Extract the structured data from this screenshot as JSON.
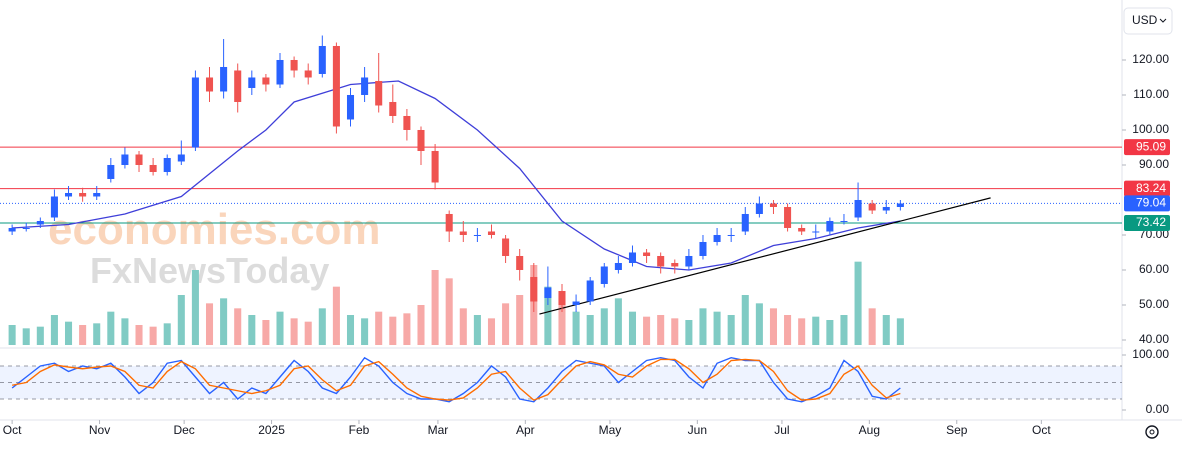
{
  "chart_data": {
    "type": "candlestick",
    "currency": "USD",
    "watermarks": [
      "economies.com",
      "FxNewsToday"
    ],
    "up_color": "#2962ff",
    "down_color": "#ef5350",
    "volume_up_color": "#80cbc4",
    "volume_down_color": "#f7a9a7",
    "xlim": [
      -4.3,
      393.6
    ],
    "xticks": [
      {
        "value": 0,
        "label": "Oct"
      },
      {
        "value": 31,
        "label": "Nov"
      },
      {
        "value": 61,
        "label": "Dec"
      },
      {
        "value": 92,
        "label": "2025"
      },
      {
        "value": 123,
        "label": "Feb"
      },
      {
        "value": 151,
        "label": "Mar"
      },
      {
        "value": 182,
        "label": "Apr"
      },
      {
        "value": 212,
        "label": "May"
      },
      {
        "value": 243,
        "label": "Jun"
      },
      {
        "value": 273,
        "label": "Jul"
      },
      {
        "value": 304,
        "label": "Aug"
      },
      {
        "value": 335,
        "label": "Sep"
      },
      {
        "value": 365,
        "label": "Oct"
      }
    ],
    "ylim": [
      38.57,
      135.71
    ],
    "yticks": [
      {
        "value": 40,
        "label": "40.00"
      },
      {
        "value": 50,
        "label": "50.00"
      },
      {
        "value": 60,
        "label": "60.00"
      },
      {
        "value": 70,
        "label": "70.00"
      },
      {
        "value": 90,
        "label": "90.00"
      },
      {
        "value": 100,
        "label": "100.00"
      },
      {
        "value": 110,
        "label": "110.00"
      },
      {
        "value": 120,
        "label": "120.00"
      }
    ],
    "x": [
      0,
      5,
      10,
      15,
      20,
      25,
      30,
      35,
      40,
      45,
      50,
      55,
      60,
      65,
      70,
      75,
      80,
      85,
      90,
      95,
      100,
      105,
      110,
      115,
      120,
      125,
      130,
      135,
      140,
      145,
      150,
      155,
      160,
      165,
      170,
      175,
      180,
      185,
      190,
      195,
      200,
      205,
      210,
      215,
      220,
      225,
      230,
      235,
      240,
      245,
      250,
      255,
      260,
      265,
      270,
      275,
      280,
      285,
      290,
      295,
      300,
      305,
      310,
      315
    ],
    "open": [
      71,
      72,
      73,
      75,
      81,
      82,
      81,
      86,
      90,
      93,
      90,
      88,
      91,
      95,
      115,
      111,
      117,
      112,
      115,
      113,
      120,
      117,
      116,
      124,
      103,
      110,
      114,
      108,
      104,
      100,
      94,
      76,
      71,
      70,
      71,
      69,
      64,
      58,
      52,
      54,
      50,
      51,
      56,
      60,
      62,
      65,
      64,
      62,
      61,
      64,
      68,
      70,
      71,
      76,
      79,
      78,
      72,
      71,
      71,
      74,
      75,
      79,
      77,
      78
    ],
    "high": [
      73,
      73.5,
      75,
      83,
      84,
      83.5,
      84,
      92,
      95,
      94,
      92,
      93,
      97,
      117,
      118,
      126,
      119,
      117,
      116,
      122,
      121,
      119,
      127,
      125,
      112,
      118,
      122,
      113,
      106,
      101,
      96,
      77,
      74,
      72,
      73,
      70,
      66,
      62,
      61,
      56,
      53,
      58,
      62,
      64,
      67,
      66,
      65,
      63,
      66,
      70,
      72,
      72,
      78,
      81,
      80,
      79,
      73,
      73,
      75,
      76,
      85,
      80,
      80,
      80
    ],
    "low": [
      70,
      71,
      72,
      74,
      80,
      79.5,
      80,
      85,
      89,
      88,
      87,
      87,
      90,
      94,
      108,
      109,
      105,
      110,
      111,
      112,
      115,
      113,
      115,
      99,
      101,
      108,
      105,
      102,
      97,
      90,
      83,
      68,
      68,
      68,
      69,
      62,
      57,
      48,
      50,
      48,
      48,
      50,
      55,
      59,
      61,
      62,
      59,
      59,
      60,
      63,
      67,
      68,
      70,
      75,
      76,
      71,
      70,
      69,
      70,
      73,
      74,
      76,
      76,
      77
    ],
    "close": [
      72,
      72,
      74,
      81,
      82,
      81,
      82,
      90,
      93,
      90,
      88,
      92,
      93,
      115,
      111,
      118,
      108,
      115,
      113,
      120,
      117,
      115,
      124,
      101,
      110,
      115,
      107,
      104,
      100,
      94,
      85,
      71,
      70,
      70,
      70,
      64,
      60,
      51,
      55,
      50,
      51,
      57,
      61,
      62,
      65,
      64,
      61,
      61,
      64,
      68,
      70,
      70,
      76,
      79,
      78,
      72,
      71,
      71,
      74,
      74,
      80,
      77,
      78,
      79
    ],
    "volume": [
      12,
      10,
      11,
      18,
      14,
      12,
      13,
      20,
      16,
      12,
      11,
      13,
      30,
      45,
      25,
      28,
      22,
      18,
      15,
      20,
      16,
      14,
      22,
      35,
      18,
      16,
      20,
      17,
      19,
      24,
      45,
      40,
      22,
      18,
      16,
      25,
      30,
      48,
      35,
      28,
      20,
      18,
      22,
      28,
      20,
      17,
      18,
      16,
      15,
      22,
      20,
      18,
      30,
      25,
      22,
      18,
      16,
      17,
      15,
      18,
      50,
      22,
      18,
      16
    ],
    "volume_lim": [
      0,
      60
    ],
    "price_lines": [
      {
        "value": 95.09,
        "color": "#f23645",
        "style": "solid"
      },
      {
        "value": 83.24,
        "color": "#f23645",
        "style": "solid"
      },
      {
        "value": 79.04,
        "color": "#2962ff",
        "style": "dotted"
      },
      {
        "value": 73.42,
        "color": "#089981",
        "style": "solid"
      }
    ],
    "moving_average": {
      "color": "#3f3fd9",
      "x": [
        0,
        20,
        40,
        60,
        80,
        90,
        100,
        120,
        137,
        150,
        165,
        180,
        195,
        210,
        225,
        240,
        255,
        270,
        285,
        300,
        315
      ],
      "values": [
        72,
        73,
        76,
        81,
        94,
        100,
        108,
        113,
        114,
        109,
        100,
        89,
        74,
        66,
        61,
        60,
        62,
        67,
        69,
        72,
        74
      ]
    },
    "trendline": {
      "color": "#000000",
      "x": [
        187,
        347
      ],
      "values": [
        47.4,
        80.6
      ]
    },
    "stochastic": {
      "ylim": [
        0,
        100
      ],
      "yticks": [
        {
          "value": 100,
          "label": "100.00"
        },
        {
          "value": 0,
          "label": "0.00"
        }
      ],
      "levels": [
        20,
        50,
        80
      ],
      "series": [
        {
          "color": "#2962ff",
          "values": [
            40,
            60,
            80,
            85,
            70,
            80,
            75,
            85,
            60,
            30,
            50,
            85,
            90,
            60,
            30,
            50,
            20,
            40,
            30,
            60,
            90,
            70,
            40,
            30,
            60,
            95,
            80,
            50,
            30,
            20,
            20,
            15,
            30,
            50,
            80,
            60,
            20,
            15,
            40,
            70,
            90,
            85,
            80,
            50,
            70,
            90,
            95,
            90,
            60,
            40,
            85,
            95,
            90,
            90,
            50,
            20,
            15,
            25,
            40,
            90,
            70,
            25,
            20,
            40
          ]
        },
        {
          "color": "#ff6d00",
          "values": [
            45,
            50,
            70,
            82,
            78,
            75,
            78,
            80,
            70,
            45,
            40,
            70,
            88,
            75,
            45,
            40,
            35,
            30,
            35,
            45,
            75,
            80,
            55,
            35,
            45,
            80,
            88,
            65,
            40,
            25,
            20,
            18,
            22,
            40,
            65,
            70,
            40,
            18,
            28,
            55,
            80,
            88,
            82,
            65,
            60,
            80,
            92,
            92,
            75,
            50,
            65,
            90,
            92,
            90,
            70,
            35,
            18,
            20,
            30,
            65,
            80,
            45,
            22,
            30
          ]
        }
      ]
    }
  }
}
